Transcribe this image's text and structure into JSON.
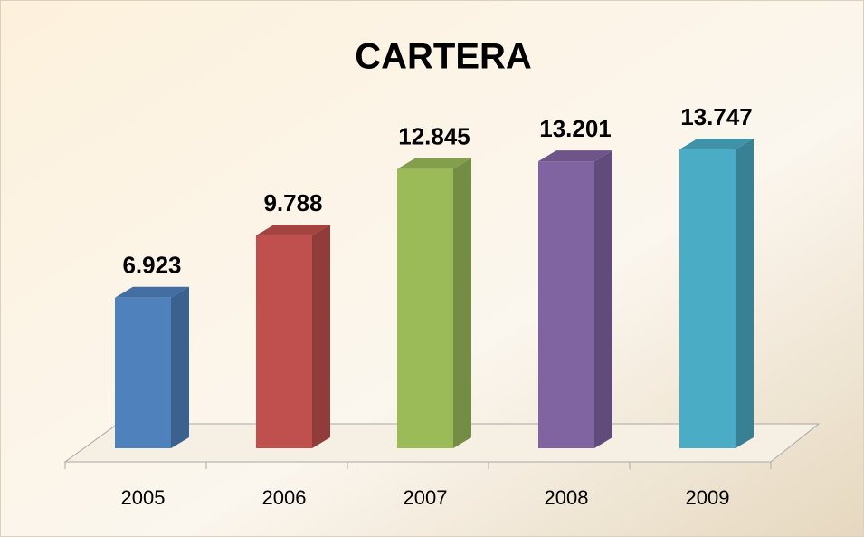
{
  "chart_data": {
    "type": "bar3d",
    "title": "CARTERA",
    "categories": [
      "2005",
      "2006",
      "2007",
      "2008",
      "2009"
    ],
    "values": [
      6923,
      9788,
      12845,
      13201,
      13747
    ],
    "value_labels": [
      "6.923",
      "9.788",
      "12.845",
      "13.201",
      "13.747"
    ],
    "colors": [
      "#4f81bd",
      "#c0504d",
      "#9bbb59",
      "#8064a2",
      "#4bacc6"
    ]
  }
}
